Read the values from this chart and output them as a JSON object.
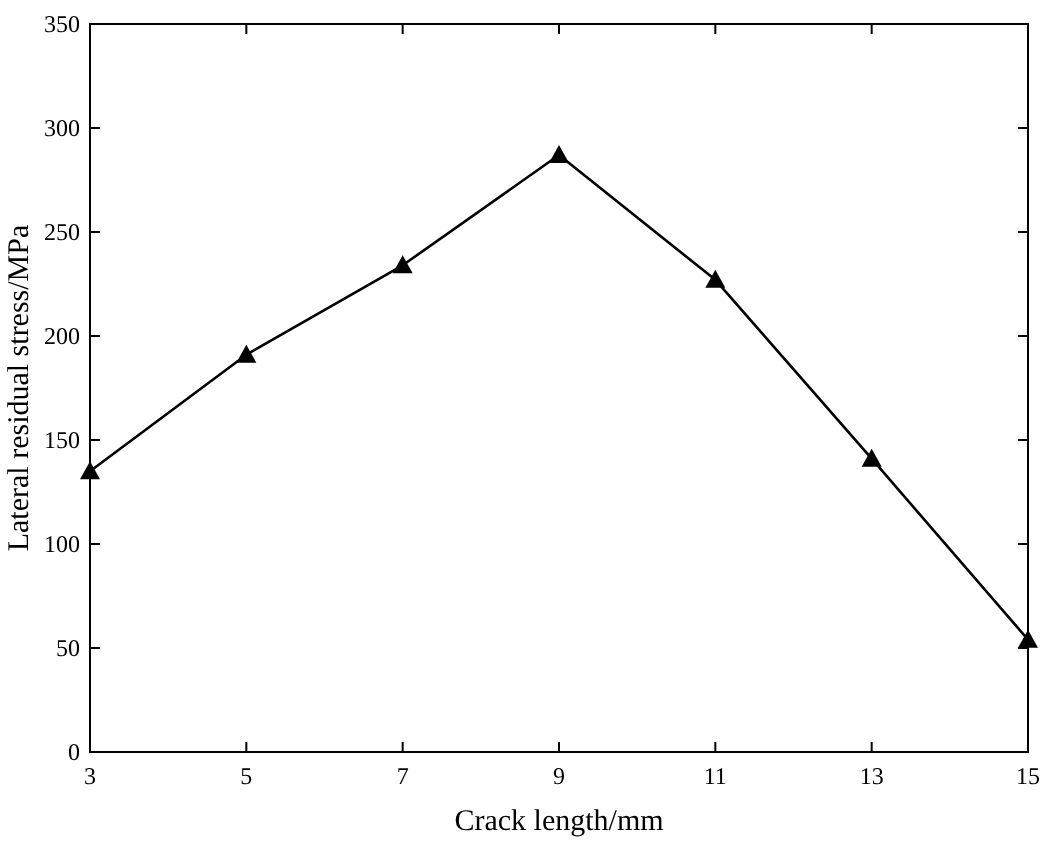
{
  "chart_data": {
    "type": "line",
    "xlabel": "Crack length/mm",
    "ylabel": "Lateral residual stress/MPa",
    "x": [
      3,
      5,
      7,
      9,
      11,
      13,
      15
    ],
    "series": [
      {
        "color": "#000000",
        "values": [
          135,
          191,
          234,
          287,
          227,
          141,
          54
        ]
      }
    ],
    "xlim": [
      3,
      15
    ],
    "xticks": [
      3,
      5,
      7,
      9,
      11,
      13,
      15
    ],
    "ylim": [
      0,
      350
    ],
    "yticks": [
      0,
      50,
      100,
      150,
      200,
      250,
      300,
      350
    ],
    "marker": "triangle",
    "line_style": "solid",
    "grid": false
  }
}
